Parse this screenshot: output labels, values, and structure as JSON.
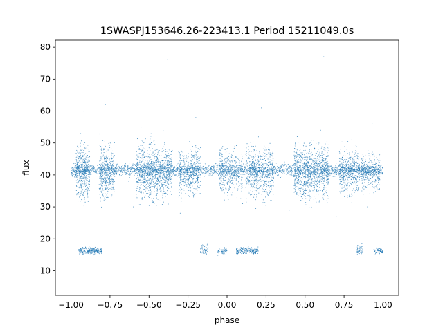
{
  "chart_data": {
    "type": "scatter",
    "title": "1SWASPJ153646.26-223413.1 Period 15211049.0s",
    "xlabel": "phase",
    "ylabel": "flux",
    "xlim": [
      -1.1,
      1.1
    ],
    "ylim": [
      2.3,
      82.2
    ],
    "xticks": [
      -1.0,
      -0.75,
      -0.5,
      -0.25,
      0.0,
      0.25,
      0.5,
      0.75,
      1.0
    ],
    "xtick_labels": [
      "−1.00",
      "−0.75",
      "−0.50",
      "−0.25",
      "0.00",
      "0.25",
      "0.50",
      "0.75",
      "1.00"
    ],
    "yticks": [
      10,
      20,
      30,
      40,
      50,
      60,
      70,
      80
    ],
    "ytick_labels": [
      "10",
      "20",
      "30",
      "40",
      "50",
      "60",
      "70",
      "80"
    ],
    "grid": false,
    "marker_color": "#1f77b4",
    "series": [
      {
        "x": [
          -0.99,
          -0.97,
          -0.95,
          -0.93,
          -0.91,
          -0.89,
          -0.87,
          -0.85,
          -0.83,
          -0.81,
          -0.79,
          -0.77,
          -0.75,
          -0.73,
          -0.71,
          -0.69,
          -0.67,
          -0.65,
          -0.63,
          -0.61,
          -0.59,
          -0.57,
          -0.55,
          -0.53,
          -0.51,
          -0.49,
          -0.47,
          -0.45,
          -0.43,
          -0.41,
          -0.39,
          -0.37,
          -0.35,
          -0.33,
          -0.31,
          -0.29,
          -0.27,
          -0.25,
          -0.23,
          -0.21,
          -0.19,
          -0.17,
          -0.15,
          -0.13,
          -0.11,
          -0.09,
          -0.07,
          -0.05,
          -0.03,
          -0.01,
          0.01,
          0.03,
          0.05,
          0.07,
          0.09,
          0.11,
          0.13,
          0.15,
          0.17,
          0.19,
          0.21,
          0.23,
          0.25,
          0.27,
          0.29,
          0.31,
          0.33,
          0.35,
          0.37,
          0.39,
          0.41,
          0.43,
          0.45,
          0.47,
          0.49,
          0.51,
          0.53,
          0.55,
          0.57,
          0.59,
          0.61,
          0.63,
          0.65,
          0.67,
          0.69,
          0.71,
          0.73,
          0.75,
          0.77,
          0.79,
          0.81,
          0.83,
          0.85,
          0.87,
          0.89,
          0.91,
          0.93,
          0.95,
          0.97,
          0.99,
          -0.95,
          -0.93,
          -0.91,
          -0.89,
          -0.87,
          -0.85,
          -0.83,
          -0.81,
          -0.15,
          -0.05,
          0.05,
          0.07,
          0.09,
          0.11,
          0.13,
          0.15,
          0.85,
          0.95,
          -0.38,
          0.62,
          -0.92,
          -0.78,
          -0.55,
          -0.4,
          -0.2,
          0.05,
          0.22,
          0.45,
          0.6,
          0.8,
          0.93,
          -0.6,
          -0.3,
          0.1,
          0.4,
          0.7,
          0.9
        ],
        "y": [
          41,
          43,
          42,
          40,
          44,
          39,
          42,
          41,
          43,
          40,
          42,
          45,
          41,
          39,
          42,
          40,
          41,
          43,
          38,
          42,
          41,
          44,
          40,
          39,
          43,
          42,
          38,
          44,
          41,
          40,
          42,
          39,
          43,
          41,
          40,
          42,
          41,
          39,
          43,
          42,
          41,
          40,
          42,
          41,
          40,
          39,
          41,
          42,
          40,
          41,
          42,
          40,
          41,
          43,
          42,
          39,
          41,
          40,
          42,
          41,
          43,
          40,
          42,
          41,
          39,
          42,
          40,
          41,
          43,
          42,
          41,
          40,
          44,
          42,
          39,
          43,
          41,
          40,
          42,
          38,
          41,
          43,
          40,
          42,
          41,
          39,
          42,
          41,
          44,
          40,
          41,
          43,
          42,
          40,
          41,
          42,
          40,
          41,
          42,
          41,
          16.5,
          16,
          17,
          16,
          16.5,
          16,
          17,
          16,
          16.5,
          16,
          16.5,
          16,
          17,
          16,
          16.5,
          16,
          16,
          16.5,
          76,
          77,
          60,
          62,
          55,
          50,
          58,
          49,
          61,
          52,
          54,
          51,
          56,
          30,
          28,
          31,
          29,
          27,
          30
        ],
        "cluster": "core"
      }
    ],
    "density_clusters": [
      {
        "x_range": [
          -1.0,
          1.0
        ],
        "y_center": 41.5,
        "y_spread": 0.9,
        "count": 2600
      },
      {
        "x_range": [
          -0.97,
          -0.88
        ],
        "y_center": 41.0,
        "y_spread": 4.0,
        "count": 450
      },
      {
        "x_range": [
          -0.82,
          -0.72
        ],
        "y_center": 41.0,
        "y_spread": 4.0,
        "count": 450
      },
      {
        "x_range": [
          -0.58,
          -0.35
        ],
        "y_center": 41.0,
        "y_spread": 4.2,
        "count": 950
      },
      {
        "x_range": [
          -0.31,
          -0.17
        ],
        "y_center": 41.0,
        "y_spread": 3.5,
        "count": 450
      },
      {
        "x_range": [
          -0.05,
          0.1
        ],
        "y_center": 41.0,
        "y_spread": 3.5,
        "count": 400
      },
      {
        "x_range": [
          0.12,
          0.3
        ],
        "y_center": 41.0,
        "y_spread": 4.0,
        "count": 550
      },
      {
        "x_range": [
          0.43,
          0.65
        ],
        "y_center": 41.0,
        "y_spread": 4.2,
        "count": 950
      },
      {
        "x_range": [
          0.72,
          0.85
        ],
        "y_center": 41.0,
        "y_spread": 3.5,
        "count": 450
      },
      {
        "x_range": [
          0.86,
          0.98
        ],
        "y_center": 41.0,
        "y_spread": 3.0,
        "count": 300
      },
      {
        "x_range": [
          -0.95,
          -0.8
        ],
        "y_center": 16.3,
        "y_spread": 0.5,
        "count": 260
      },
      {
        "x_range": [
          -0.17,
          -0.12
        ],
        "y_center": 16.5,
        "y_spread": 0.7,
        "count": 60
      },
      {
        "x_range": [
          -0.06,
          0.0
        ],
        "y_center": 16.2,
        "y_spread": 0.5,
        "count": 70
      },
      {
        "x_range": [
          0.06,
          0.2
        ],
        "y_center": 16.3,
        "y_spread": 0.5,
        "count": 200
      },
      {
        "x_range": [
          0.83,
          0.87
        ],
        "y_center": 16.5,
        "y_spread": 0.7,
        "count": 45
      },
      {
        "x_range": [
          0.94,
          1.0
        ],
        "y_center": 16.2,
        "y_spread": 0.5,
        "count": 70
      }
    ]
  }
}
